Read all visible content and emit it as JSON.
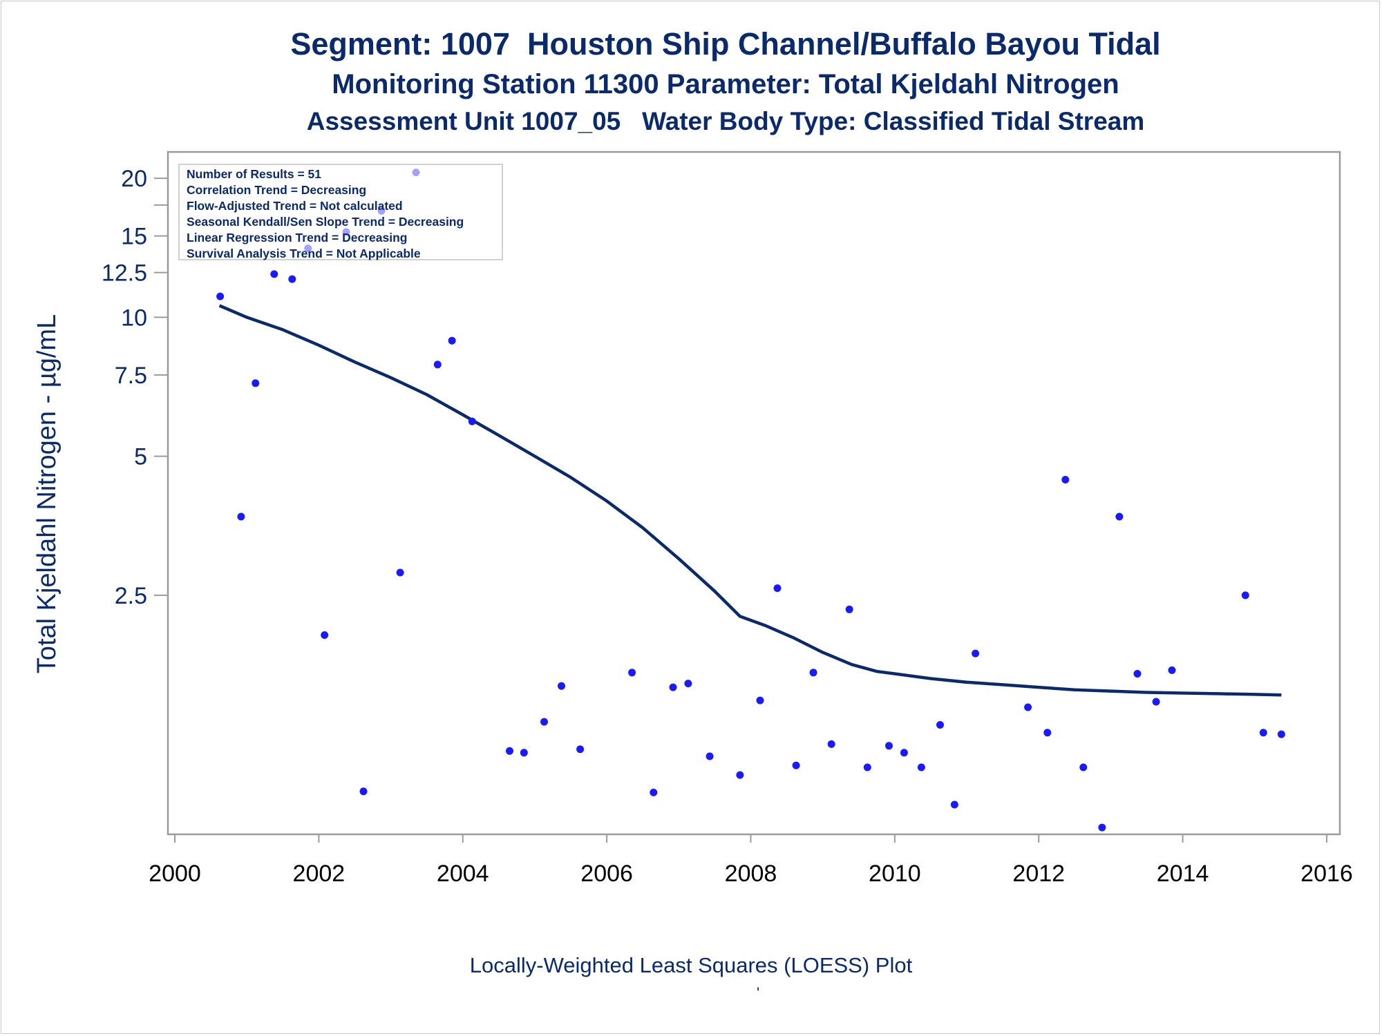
{
  "titles": {
    "line1": "Segment: 1007  Houston Ship Channel/Buffalo Bayou Tidal",
    "line2": "Monitoring Station 11300 Parameter: Total Kjeldahl Nitrogen",
    "line3": "Assessment Unit 1007_05   Water Body Type: Classified Tidal Stream"
  },
  "stats_box": [
    "Number of Results = 51",
    "Correlation Trend = Decreasing",
    "Flow-Adjusted Trend = Not calculated",
    "Seasonal Kendall/Sen Slope Trend = Decreasing",
    "Linear Regression Trend = Decreasing",
    "Survival Analysis Trend = Not Applicable"
  ],
  "footnote": "Locally-Weighted Least Squares (LOESS) Plot",
  "footnote_mark": "'",
  "colors": {
    "text": "#0b2a6b",
    "points": "#1a1aff",
    "loess_line": "#0b2a6b",
    "axis": "#9a9a9a"
  },
  "chart_data": {
    "type": "scatter",
    "title": "Segment: 1007  Houston Ship Channel/Buffalo Bayou Tidal",
    "xlabel": "",
    "ylabel": "Total Kjeldahl Nitrogen -  µg/mL",
    "xlim": [
      2000,
      2016
    ],
    "ylim": [
      0.78,
      21
    ],
    "y_scale": "log",
    "grid": false,
    "x_ticks": [
      2000,
      2002,
      2004,
      2006,
      2008,
      2010,
      2012,
      2014,
      2016
    ],
    "x_tick_labels": [
      "2000",
      "2002",
      "2004",
      "2006",
      "2008",
      "2010",
      "2012",
      "2014",
      "2016"
    ],
    "y_ticks": [
      2.5,
      5,
      7.5,
      10,
      12.5,
      15,
      20
    ],
    "y_tick_labels": [
      "2.5",
      "5",
      "7.5",
      "10",
      "12.5",
      "15",
      "20"
    ],
    "y_minor_ticks": [
      17.5
    ],
    "series": [
      {
        "type": "scatter",
        "points": [
          [
            2000.63,
            11.1
          ],
          [
            2000.92,
            3.7
          ],
          [
            2001.12,
            7.2
          ],
          [
            2001.38,
            12.4
          ],
          [
            2001.63,
            12.1
          ],
          [
            2001.85,
            14.1
          ],
          [
            2002.08,
            2.05
          ],
          [
            2002.38,
            15.3
          ],
          [
            2002.62,
            0.94
          ],
          [
            2002.87,
            17.0
          ],
          [
            2003.13,
            2.8
          ],
          [
            2003.35,
            20.6
          ],
          [
            2003.65,
            7.9
          ],
          [
            2003.85,
            8.9
          ],
          [
            2004.13,
            5.95
          ],
          [
            2004.65,
            1.15
          ],
          [
            2004.85,
            1.14
          ],
          [
            2005.13,
            1.33
          ],
          [
            2005.37,
            1.59
          ],
          [
            2005.63,
            1.16
          ],
          [
            2006.35,
            1.7
          ],
          [
            2006.65,
            0.935
          ],
          [
            2006.92,
            1.58
          ],
          [
            2007.13,
            1.61
          ],
          [
            2007.43,
            1.12
          ],
          [
            2007.85,
            1.02
          ],
          [
            2008.13,
            1.48
          ],
          [
            2008.37,
            2.59
          ],
          [
            2008.63,
            1.07
          ],
          [
            2008.87,
            1.7
          ],
          [
            2009.12,
            1.19
          ],
          [
            2009.37,
            2.33
          ],
          [
            2009.62,
            1.06
          ],
          [
            2009.92,
            1.18
          ],
          [
            2010.13,
            1.14
          ],
          [
            2010.37,
            1.06
          ],
          [
            2010.63,
            1.31
          ],
          [
            2010.83,
            0.88
          ],
          [
            2011.12,
            1.87
          ],
          [
            2011.85,
            1.43
          ],
          [
            2012.12,
            1.26
          ],
          [
            2012.37,
            4.45
          ],
          [
            2012.62,
            1.06
          ],
          [
            2012.88,
            0.785
          ],
          [
            2013.12,
            3.7
          ],
          [
            2013.37,
            1.69
          ],
          [
            2013.63,
            1.47
          ],
          [
            2013.85,
            1.72
          ],
          [
            2014.87,
            2.5
          ],
          [
            2015.12,
            1.26
          ],
          [
            2015.37,
            1.25
          ]
        ]
      },
      {
        "type": "line",
        "points": [
          [
            2000.62,
            10.6
          ],
          [
            2001.0,
            10.0
          ],
          [
            2001.5,
            9.4
          ],
          [
            2002.0,
            8.7
          ],
          [
            2002.5,
            8.0
          ],
          [
            2003.0,
            7.4
          ],
          [
            2003.5,
            6.8
          ],
          [
            2004.0,
            6.15
          ],
          [
            2004.5,
            5.55
          ],
          [
            2005.0,
            5.0
          ],
          [
            2005.5,
            4.5
          ],
          [
            2006.0,
            4.0
          ],
          [
            2006.5,
            3.5
          ],
          [
            2007.0,
            3.0
          ],
          [
            2007.5,
            2.55
          ],
          [
            2007.85,
            2.25
          ],
          [
            2008.2,
            2.15
          ],
          [
            2008.6,
            2.02
          ],
          [
            2009.0,
            1.88
          ],
          [
            2009.4,
            1.77
          ],
          [
            2009.75,
            1.71
          ],
          [
            2010.0,
            1.69
          ],
          [
            2010.5,
            1.65
          ],
          [
            2011.0,
            1.62
          ],
          [
            2011.5,
            1.6
          ],
          [
            2012.0,
            1.58
          ],
          [
            2012.5,
            1.56
          ],
          [
            2013.0,
            1.55
          ],
          [
            2013.5,
            1.54
          ],
          [
            2014.0,
            1.535
          ],
          [
            2014.5,
            1.53
          ],
          [
            2015.0,
            1.525
          ],
          [
            2015.37,
            1.52
          ]
        ]
      }
    ]
  }
}
